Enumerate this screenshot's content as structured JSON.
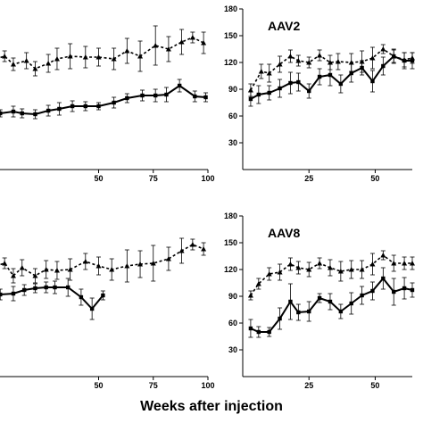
{
  "figure": {
    "xlabel": "Weeks after injection"
  },
  "chart_data": [
    {
      "type": "line",
      "title": "",
      "xlim": [
        0,
        100
      ],
      "ylim": [
        0,
        180
      ],
      "x_ticks": [
        50,
        75,
        100
      ],
      "y_ticks": [],
      "series": [
        {
          "style": "dashed-triangle",
          "x": [
            3,
            7,
            11,
            17,
            21,
            27,
            31,
            37,
            44,
            50,
            57,
            63,
            69,
            76,
            82,
            88,
            93,
            98
          ],
          "y": [
            124,
            127,
            118,
            122,
            113,
            119,
            124,
            127,
            126,
            126,
            124,
            133,
            127,
            139,
            135,
            143,
            148,
            142
          ],
          "err": [
            5,
            6,
            7,
            9,
            8,
            10,
            12,
            14,
            12,
            10,
            12,
            14,
            17,
            22,
            14,
            14,
            6,
            12
          ]
        },
        {
          "style": "solid-square",
          "x": [
            0,
            5,
            11,
            15,
            21,
            27,
            32,
            38,
            44,
            50,
            57,
            63,
            70,
            76,
            81,
            87,
            94,
            99
          ],
          "y": [
            60,
            63,
            65,
            63,
            62,
            66,
            68,
            71,
            71,
            71,
            75,
            80,
            83,
            83,
            84,
            94,
            82,
            81
          ],
          "err": [
            4,
            4,
            6,
            5,
            5,
            6,
            7,
            6,
            5,
            4,
            6,
            5,
            6,
            7,
            8,
            7,
            6,
            5
          ]
        }
      ]
    },
    {
      "type": "line",
      "title": "AAV2",
      "xlim": [
        0,
        64
      ],
      "ylim": [
        0,
        180
      ],
      "x_ticks": [
        25,
        50
      ],
      "x_tick_labels": [
        "25",
        "50"
      ],
      "y_ticks": [
        30,
        60,
        90,
        120,
        150,
        180
      ],
      "y_tick_labels": [
        "30",
        "60",
        "90",
        "120",
        "150",
        "180"
      ],
      "series": [
        {
          "style": "dashed-triangle",
          "x": [
            3,
            7,
            10,
            14,
            18,
            21,
            25,
            29,
            33,
            36,
            41,
            45,
            49,
            53,
            57,
            61,
            64
          ],
          "y": [
            89,
            110,
            108,
            118,
            127,
            122,
            120,
            128,
            120,
            121,
            120,
            121,
            125,
            135,
            127,
            123,
            125
          ],
          "err": [
            7,
            8,
            10,
            9,
            7,
            6,
            6,
            6,
            8,
            9,
            10,
            12,
            12,
            5,
            7,
            8,
            6
          ]
        },
        {
          "style": "solid-square",
          "x": [
            3,
            6,
            10,
            14,
            18,
            21,
            25,
            29,
            33,
            37,
            41,
            45,
            49,
            53,
            57,
            61,
            64
          ],
          "y": [
            79,
            84,
            86,
            91,
            97,
            98,
            88,
            104,
            106,
            96,
            108,
            114,
            99,
            116,
            127,
            122,
            122
          ],
          "err": [
            8,
            10,
            8,
            10,
            12,
            10,
            8,
            9,
            12,
            10,
            10,
            8,
            12,
            10,
            8,
            9,
            9
          ]
        }
      ]
    },
    {
      "type": "line",
      "title": "",
      "xlim": [
        0,
        100
      ],
      "ylim": [
        0,
        180
      ],
      "x_ticks": [
        50,
        75,
        100
      ],
      "y_ticks": [],
      "series": [
        {
          "style": "dashed-triangle",
          "x": [
            3,
            7,
            11,
            15,
            21,
            26,
            31,
            37,
            44,
            50,
            56,
            63,
            69,
            75,
            82,
            88,
            93,
            98
          ],
          "y": [
            124,
            127,
            113,
            122,
            113,
            120,
            119,
            120,
            129,
            124,
            120,
            124,
            126,
            127,
            132,
            141,
            148,
            143
          ],
          "err": [
            5,
            6,
            8,
            9,
            8,
            10,
            10,
            12,
            9,
            10,
            12,
            18,
            15,
            20,
            13,
            14,
            6,
            7
          ]
        },
        {
          "style": "solid-square",
          "x": [
            0,
            5,
            11,
            16,
            21,
            26,
            30,
            36,
            42,
            47,
            52
          ],
          "y": [
            92,
            92,
            93,
            97,
            99,
            100,
            100,
            100,
            89,
            76,
            91
          ],
          "err": [
            4,
            6,
            8,
            6,
            5,
            6,
            7,
            10,
            9,
            12,
            5
          ]
        }
      ]
    },
    {
      "type": "line",
      "title": "AAV8",
      "xlim": [
        0,
        64
      ],
      "ylim": [
        0,
        180
      ],
      "x_ticks": [
        25,
        50
      ],
      "x_tick_labels": [
        "25",
        "50"
      ],
      "y_ticks": [
        30,
        60,
        90,
        120,
        150,
        180
      ],
      "y_tick_labels": [
        "30",
        "60",
        "90",
        "120",
        "150",
        "180"
      ],
      "series": [
        {
          "style": "dashed-triangle",
          "x": [
            3,
            6,
            10,
            14,
            18,
            21,
            25,
            29,
            33,
            37,
            41,
            45,
            49,
            53,
            57,
            61,
            64
          ],
          "y": [
            91,
            104,
            115,
            117,
            126,
            122,
            120,
            127,
            122,
            118,
            120,
            120,
            126,
            136,
            127,
            127,
            127
          ],
          "err": [
            5,
            6,
            7,
            9,
            7,
            7,
            8,
            6,
            9,
            11,
            10,
            10,
            12,
            5,
            9,
            7,
            7
          ]
        },
        {
          "style": "solid-square",
          "x": [
            3,
            6,
            10,
            14,
            18,
            21,
            25,
            29,
            33,
            37,
            41,
            45,
            49,
            53,
            57,
            61,
            64
          ],
          "y": [
            54,
            50,
            50,
            65,
            84,
            72,
            73,
            88,
            84,
            73,
            82,
            91,
            96,
            110,
            95,
            99,
            97
          ],
          "err": [
            10,
            6,
            5,
            12,
            20,
            9,
            11,
            5,
            9,
            8,
            12,
            10,
            10,
            12,
            15,
            12,
            8
          ]
        }
      ]
    }
  ]
}
